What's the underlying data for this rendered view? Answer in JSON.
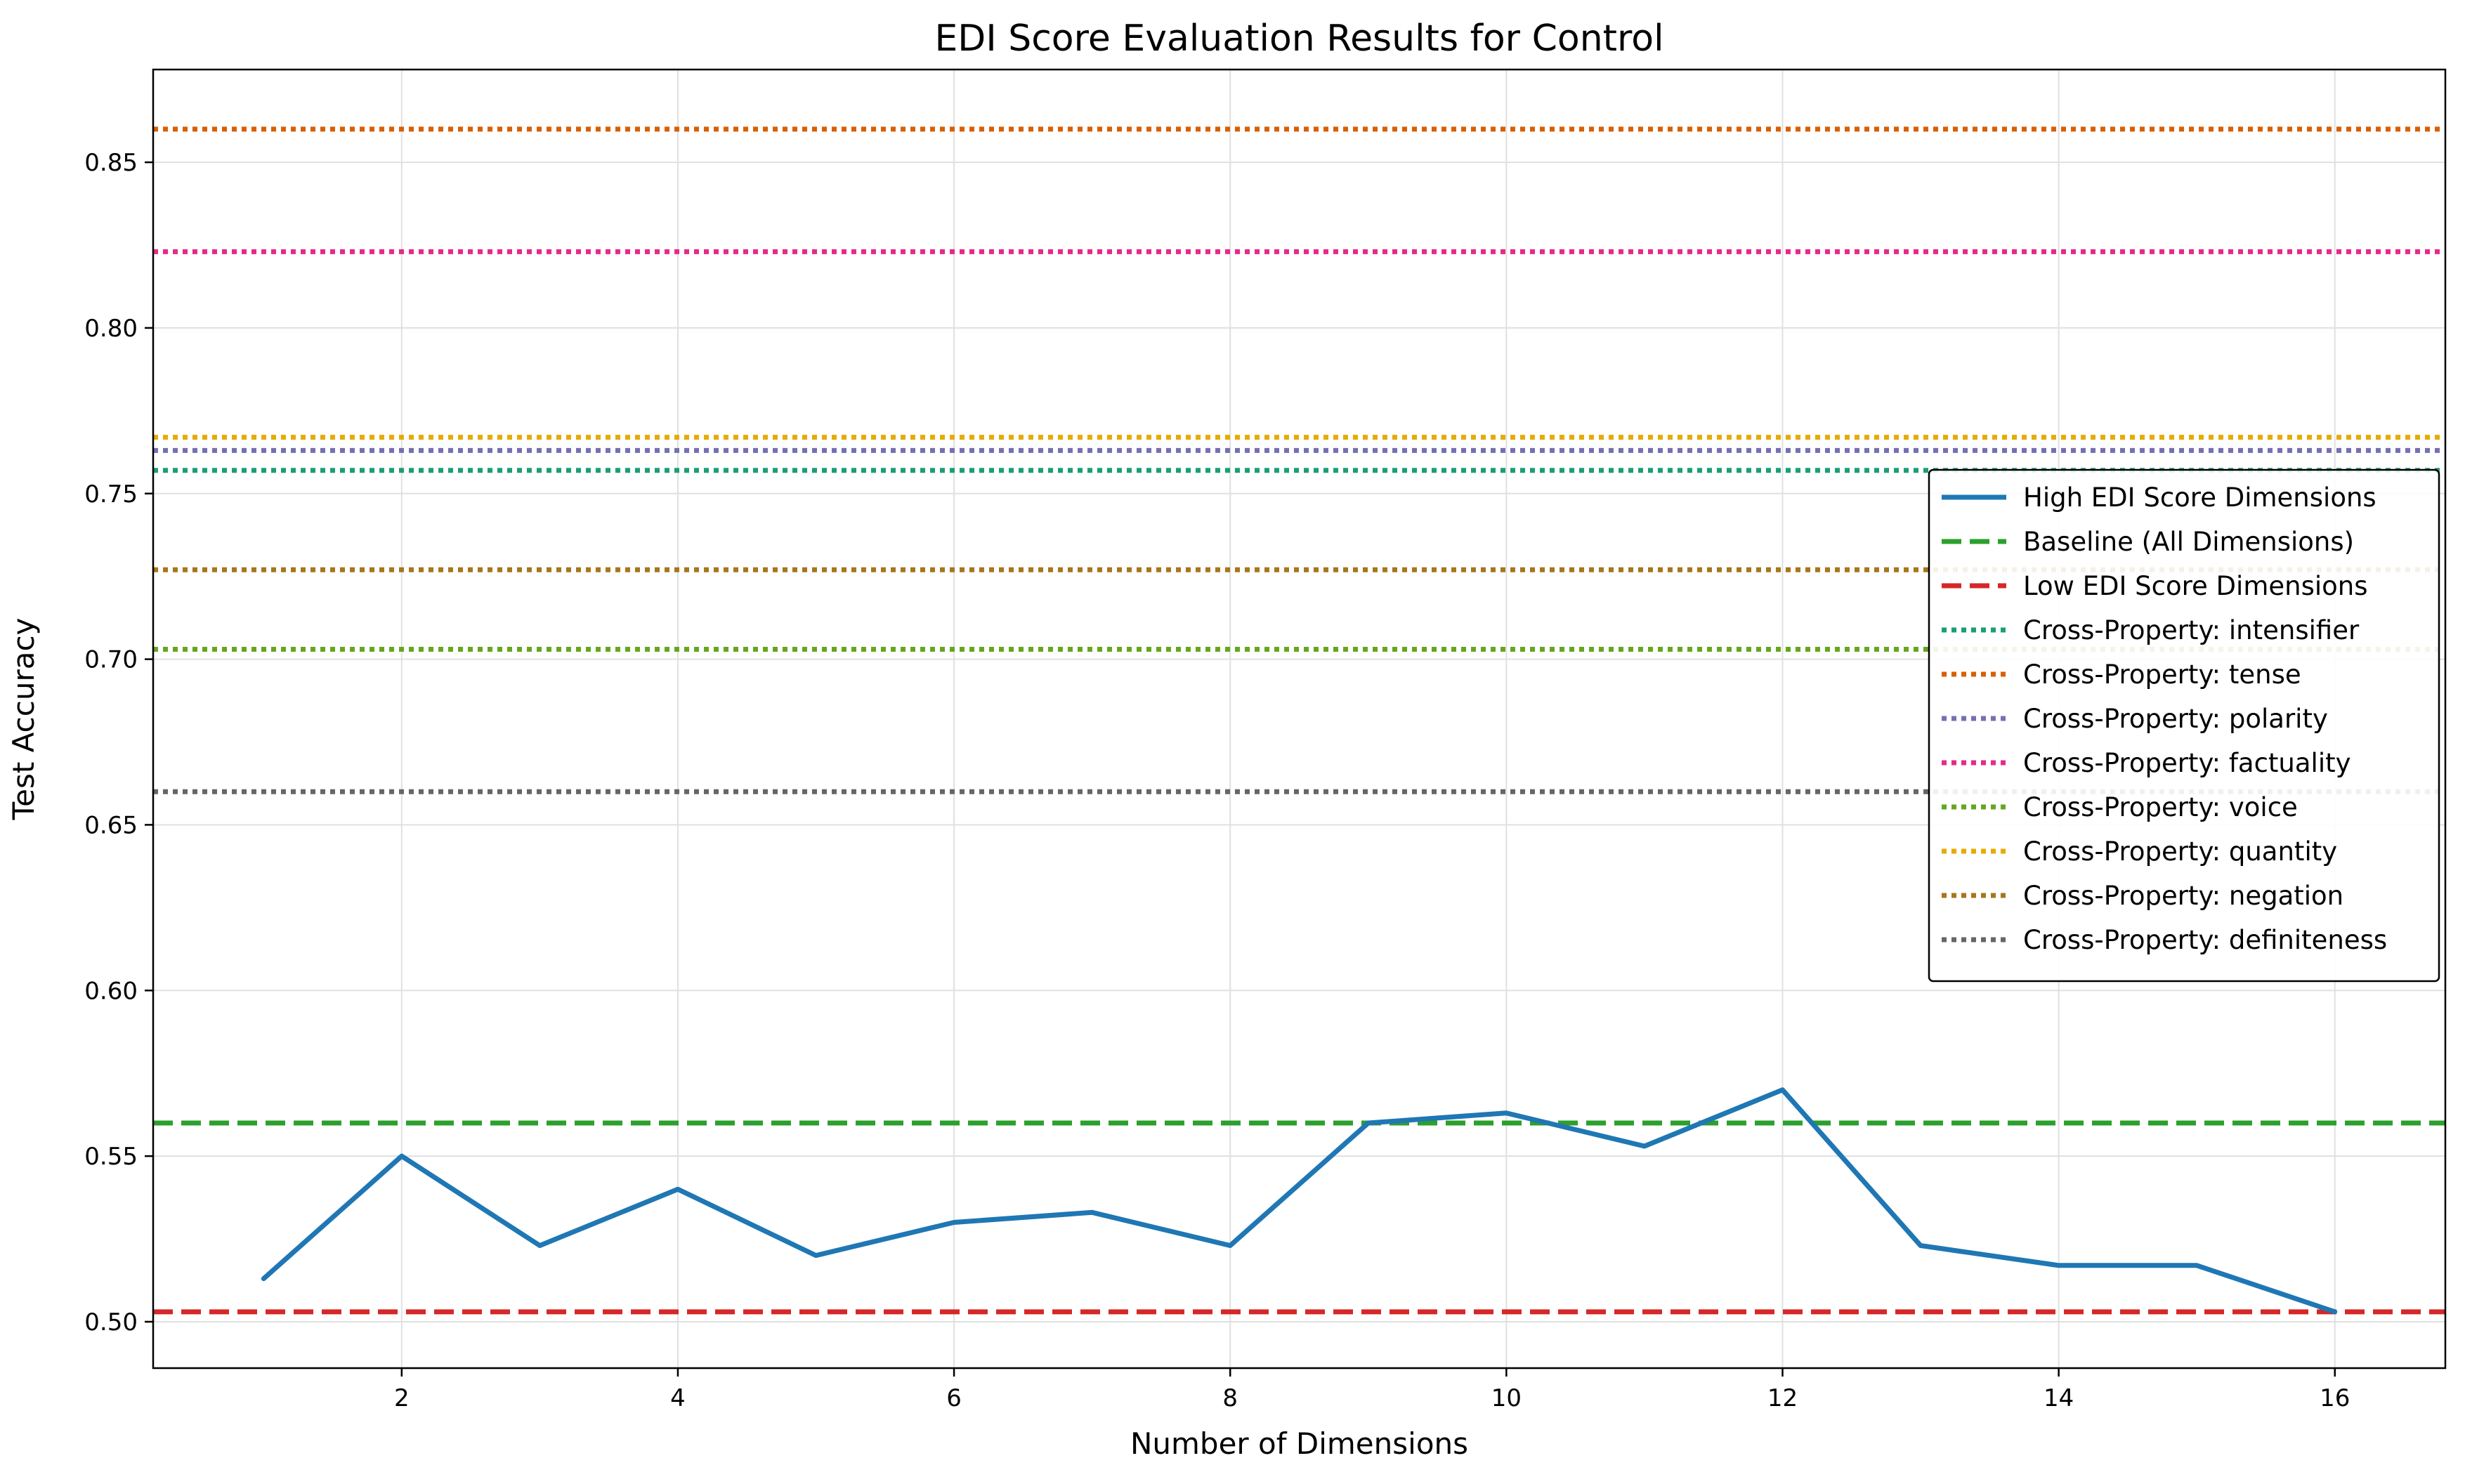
{
  "chart_data": {
    "type": "line",
    "title": "EDI Score Evaluation Results for Control",
    "xlabel": "Number of Dimensions",
    "ylabel": "Test Accuracy",
    "xlim": [
      0.2,
      16.8
    ],
    "ylim": [
      0.486,
      0.878
    ],
    "xticks": [
      2,
      4,
      6,
      8,
      10,
      12,
      14,
      16
    ],
    "yticks": [
      0.5,
      0.55,
      0.6,
      0.65,
      0.7,
      0.75,
      0.8,
      0.85
    ],
    "grid": true,
    "legend_position": "center-right",
    "x": [
      1,
      2,
      3,
      4,
      5,
      6,
      7,
      8,
      9,
      10,
      11,
      12,
      13,
      14,
      15,
      16
    ],
    "series": [
      {
        "name": "High EDI Score Dimensions",
        "kind": "line",
        "style": "solid",
        "color": "#1f77b4",
        "values": [
          0.513,
          0.55,
          0.523,
          0.54,
          0.52,
          0.53,
          0.533,
          0.523,
          0.56,
          0.563,
          0.553,
          0.57,
          0.523,
          0.517,
          0.517,
          0.503
        ]
      },
      {
        "name": "Baseline (All Dimensions)",
        "kind": "hline",
        "style": "dashed",
        "color": "#2ca02c",
        "value": 0.56
      },
      {
        "name": "Low EDI Score Dimensions",
        "kind": "hline",
        "style": "dashed",
        "color": "#d62728",
        "value": 0.503
      },
      {
        "name": "Cross-Property: intensifier",
        "kind": "hline",
        "style": "dotted",
        "color": "#1b9e77",
        "value": 0.757
      },
      {
        "name": "Cross-Property: tense",
        "kind": "hline",
        "style": "dotted",
        "color": "#d95f02",
        "value": 0.86
      },
      {
        "name": "Cross-Property: polarity",
        "kind": "hline",
        "style": "dotted",
        "color": "#7570b3",
        "value": 0.763
      },
      {
        "name": "Cross-Property: factuality",
        "kind": "hline",
        "style": "dotted",
        "color": "#e7298a",
        "value": 0.823
      },
      {
        "name": "Cross-Property: voice",
        "kind": "hline",
        "style": "dotted",
        "color": "#66a61e",
        "value": 0.703
      },
      {
        "name": "Cross-Property: quantity",
        "kind": "hline",
        "style": "dotted",
        "color": "#e6ab02",
        "value": 0.767
      },
      {
        "name": "Cross-Property: negation",
        "kind": "hline",
        "style": "dotted",
        "color": "#a6761d",
        "value": 0.727
      },
      {
        "name": "Cross-Property: definiteness",
        "kind": "hline",
        "style": "dotted",
        "color": "#666666",
        "value": 0.66
      }
    ]
  }
}
